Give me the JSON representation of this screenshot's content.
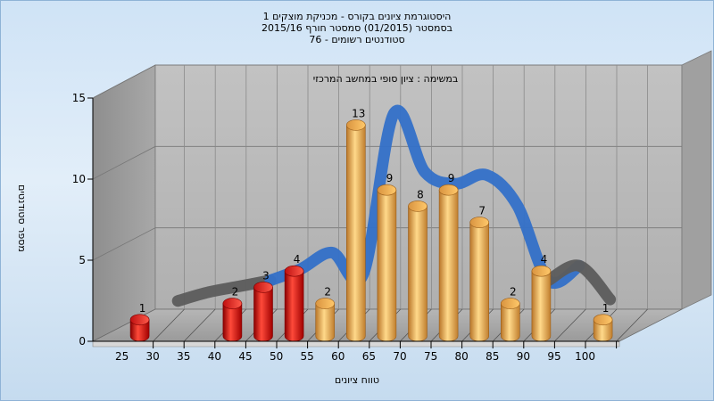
{
  "header": {
    "title_line1": "היסטוגרמת ציונים בקורס - מכניקת מוצקים 1",
    "title_line2": "בסמסטר  (01/2015)  סמסטר חורף  2015/16",
    "title_line3": "סטודנטים רשומים - 76"
  },
  "chart_data": {
    "type": "bar",
    "title": "היסטוגרמת ציונים בקורס - מכניקת מוצקים 1",
    "annotation": "במשימה : ציון סופי במחשב המרכזי",
    "xlabel": "טווח ציונים",
    "ylabel": "מספר סטודנטים",
    "x_ticks": [
      25,
      30,
      35,
      40,
      45,
      50,
      55,
      60,
      65,
      70,
      75,
      80,
      85,
      90,
      95,
      100
    ],
    "y_ticks": [
      0,
      5,
      10,
      15
    ],
    "ylim": [
      0,
      15
    ],
    "grid": true,
    "series": [
      {
        "type": "bar",
        "bins": [
          25,
          30,
          35,
          40,
          45,
          50,
          55,
          60,
          65,
          70,
          75,
          80,
          85,
          90,
          95,
          100
        ],
        "values": [
          1,
          0,
          0,
          2,
          3,
          4,
          2,
          13,
          9,
          8,
          9,
          7,
          2,
          4,
          0,
          1
        ],
        "colors": [
          "#e02020",
          "#e02020",
          "#e02020",
          "#e02020",
          "#e02020",
          "#e02020",
          "#f0b450",
          "#f0b450",
          "#f0b450",
          "#f0b450",
          "#f0b450",
          "#f0b450",
          "#f0b450",
          "#f0b450",
          "#f0b450",
          "#f0b450"
        ]
      },
      {
        "type": "area-ribbon",
        "x": [
          30,
          35,
          40,
          45,
          50,
          55,
          60,
          65,
          70,
          75,
          80,
          85,
          90,
          95,
          100
        ],
        "values": [
          0.2,
          0.8,
          1.2,
          1.6,
          2.4,
          3.5,
          2.0,
          13.0,
          9.0,
          8.2,
          8.8,
          6.7,
          1.6,
          2.6,
          0.3
        ],
        "colors": [
          "#5c5c5c",
          "#3370c8"
        ]
      }
    ]
  }
}
